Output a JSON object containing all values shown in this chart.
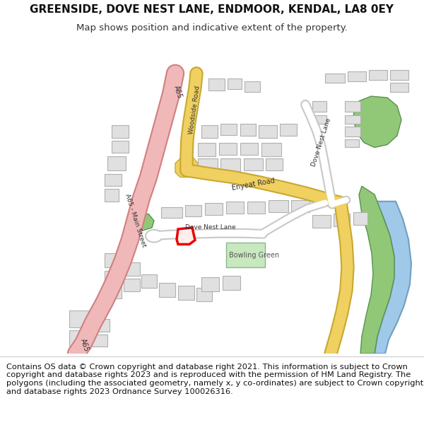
{
  "title": "GREENSIDE, DOVE NEST LANE, ENDMOOR, KENDAL, LA8 0EY",
  "subtitle": "Map shows position and indicative extent of the property.",
  "footer": "Contains OS data © Crown copyright and database right 2021. This information is subject to Crown copyright and database rights 2023 and is reproduced with the permission of HM Land Registry. The polygons (including the associated geometry, namely x, y co-ordinates) are subject to Crown copyright and database rights 2023 Ordnance Survey 100026316.",
  "bg_color": "#ffffff",
  "map_bg": "#f5f5f5",
  "road_yellow": "#f0d060",
  "road_yellow_edge": "#c8a830",
  "road_pink": "#f0b8b8",
  "road_pink_edge": "#d08080",
  "road_white": "#ffffff",
  "road_white_edge": "#c8c8c8",
  "building_fill": "#e0e0e0",
  "building_outline": "#b0b0b0",
  "green_fill": "#90c878",
  "green_dark": "#5a9050",
  "green_light": "#c8e8c0",
  "water_fill": "#a0c8e8",
  "water_outline": "#70a0c0",
  "red_outline": "#ee0000",
  "text_color": "#444444",
  "title_fontsize": 11,
  "subtitle_fontsize": 9.5,
  "footer_fontsize": 8.2
}
